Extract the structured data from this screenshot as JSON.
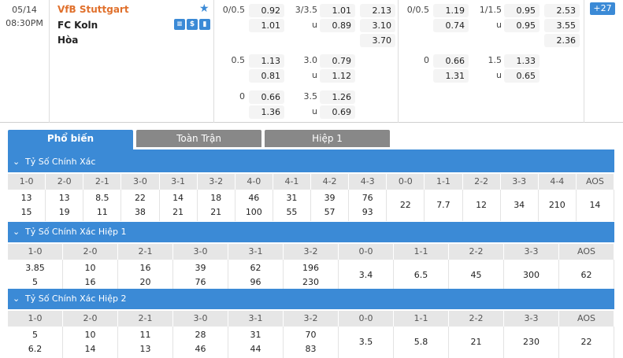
{
  "match": {
    "date": "05/14",
    "time": "08:30PM",
    "home": "VfB Stuttgart",
    "away": "FC Koln",
    "draw": "Hòa",
    "icons": [
      "list-icon",
      "dollar-icon",
      "chart-icon"
    ],
    "more": "+27"
  },
  "ft": {
    "rows": [
      {
        "hcp": "0/0.5",
        "h1": "0.92",
        "h2": "1.01",
        "ou": "3/3.5",
        "ou_u": "u",
        "o1": "1.01",
        "o2": "0.89",
        "x1": "2.13",
        "x2": "3.10",
        "x3": "3.70"
      },
      {
        "hcp": "0.5",
        "h1": "1.13",
        "h2": "0.81",
        "ou": "3.0",
        "ou_u": "u",
        "o1": "0.79",
        "o2": "1.12"
      },
      {
        "hcp": "0",
        "h1": "0.66",
        "h2": "1.36",
        "ou": "3.5",
        "ou_u": "u",
        "o1": "1.26",
        "o2": "0.69"
      }
    ]
  },
  "ht": {
    "rows": [
      {
        "hcp": "0/0.5",
        "h1": "1.19",
        "h2": "0.74",
        "ou": "1/1.5",
        "ou_u": "u",
        "o1": "0.95",
        "o2": "0.95",
        "x1": "2.53",
        "x2": "3.55",
        "x3": "2.36"
      },
      {
        "hcp": "0",
        "h1": "0.66",
        "h2": "1.31",
        "ou": "1.5",
        "ou_u": "u",
        "o1": "1.33",
        "o2": "0.65"
      }
    ]
  },
  "tabs": [
    "Phổ biến",
    "Toàn Trận",
    "Hiệp 1"
  ],
  "sections": [
    {
      "title": "Tỷ Số Chính Xác",
      "headers": [
        "1-0",
        "2-0",
        "2-1",
        "3-0",
        "3-1",
        "3-2",
        "4-0",
        "4-1",
        "4-2",
        "4-3",
        "0-0",
        "1-1",
        "2-2",
        "3-3",
        "4-4",
        "AOS"
      ],
      "top": [
        "13",
        "13",
        "8.5",
        "22",
        "14",
        "18",
        "46",
        "31",
        "39",
        "76"
      ],
      "bottom": [
        "15",
        "19",
        "11",
        "38",
        "21",
        "21",
        "100",
        "55",
        "57",
        "93"
      ],
      "single": [
        "22",
        "7.7",
        "12",
        "34",
        "210",
        "14"
      ]
    },
    {
      "title": "Tỷ Số Chính Xác Hiệp 1",
      "headers": [
        "1-0",
        "2-0",
        "2-1",
        "3-0",
        "3-1",
        "3-2",
        "0-0",
        "1-1",
        "2-2",
        "3-3",
        "AOS"
      ],
      "top": [
        "3.85",
        "10",
        "16",
        "39",
        "62",
        "196"
      ],
      "bottom": [
        "5",
        "16",
        "20",
        "76",
        "96",
        "230"
      ],
      "single": [
        "3.4",
        "6.5",
        "45",
        "300",
        "62"
      ]
    },
    {
      "title": "Tỷ Số Chính Xác Hiệp 2",
      "headers": [
        "1-0",
        "2-0",
        "2-1",
        "3-0",
        "3-1",
        "3-2",
        "0-0",
        "1-1",
        "2-2",
        "3-3",
        "AOS"
      ],
      "top": [
        "5",
        "10",
        "11",
        "28",
        "31",
        "70"
      ],
      "bottom": [
        "6.2",
        "14",
        "13",
        "46",
        "44",
        "83"
      ],
      "single": [
        "3.5",
        "5.8",
        "21",
        "230",
        "22"
      ]
    }
  ]
}
